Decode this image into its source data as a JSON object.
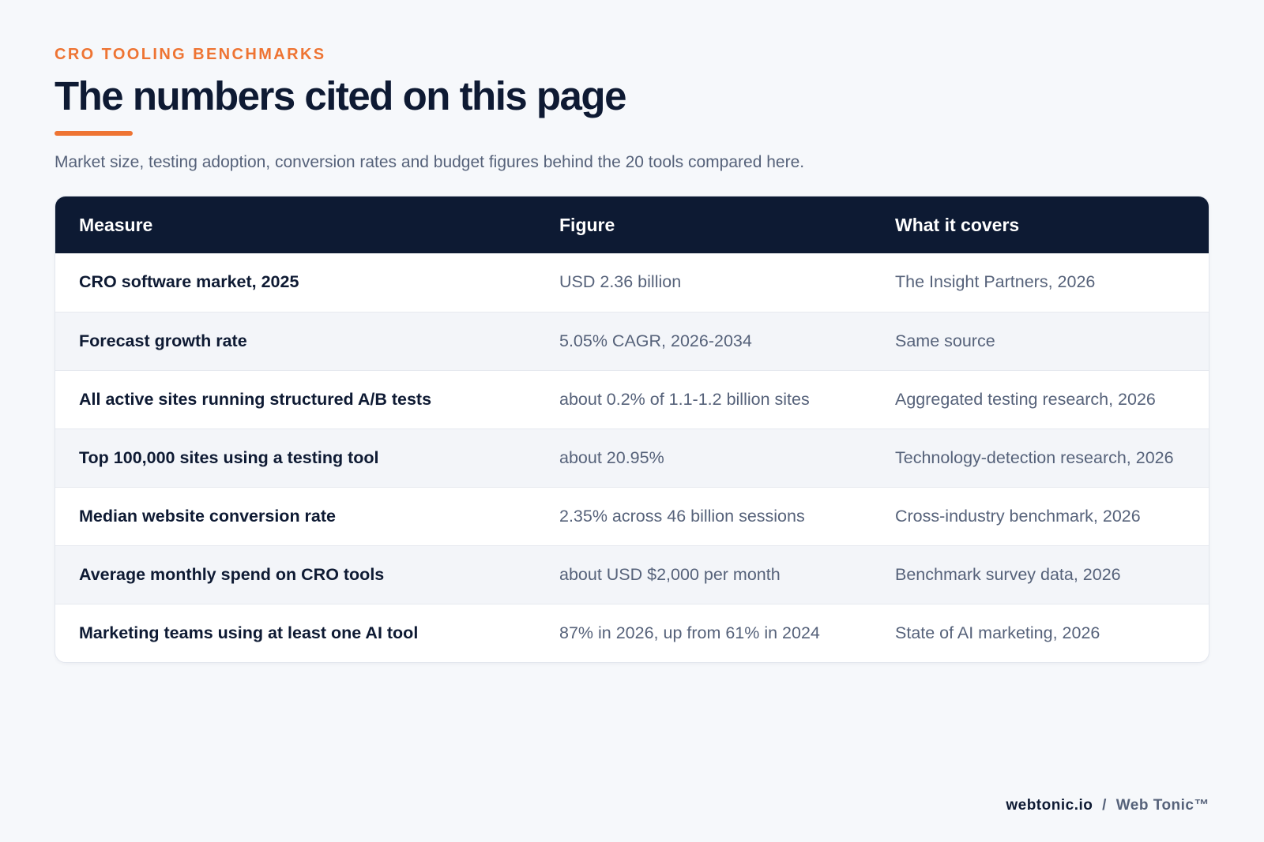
{
  "header": {
    "eyebrow": "CRO TOOLING BENCHMARKS",
    "title": "The numbers cited on this page",
    "subtitle": "Market size, testing adoption, conversion rates and budget figures behind the 20 tools compared here."
  },
  "table": {
    "columns": [
      "Measure",
      "Figure",
      "What it covers"
    ],
    "rows": [
      {
        "measure": "CRO software market, 2025",
        "figure": "USD 2.36 billion",
        "covers": "The Insight Partners, 2026"
      },
      {
        "measure": "Forecast growth rate",
        "figure": "5.05% CAGR, 2026-2034",
        "covers": "Same source"
      },
      {
        "measure": "All active sites running structured A/B tests",
        "figure": "about 0.2% of 1.1-1.2 billion sites",
        "covers": "Aggregated testing research, 2026"
      },
      {
        "measure": "Top 100,000 sites using a testing tool",
        "figure": "about 20.95%",
        "covers": "Technology-detection research, 2026"
      },
      {
        "measure": "Median website conversion rate",
        "figure": "2.35% across 46 billion sessions",
        "covers": "Cross-industry benchmark, 2026"
      },
      {
        "measure": "Average monthly spend on CRO tools",
        "figure": "about USD $2,000 per month",
        "covers": "Benchmark survey data, 2026"
      },
      {
        "measure": "Marketing teams using at least one AI tool",
        "figure": "87% in 2026, up from 61% in 2024",
        "covers": "State of AI marketing, 2026"
      }
    ]
  },
  "footer": {
    "domain": "webtonic.io",
    "separator": "/",
    "brand": "Web Tonic™"
  },
  "colors": {
    "accent": "#ee7433",
    "header_bg": "#0d1a33",
    "text_dark": "#0e1a33",
    "text_muted": "#56627a",
    "page_bg": "#f6f8fb",
    "row_alt": "#f3f5f9"
  }
}
